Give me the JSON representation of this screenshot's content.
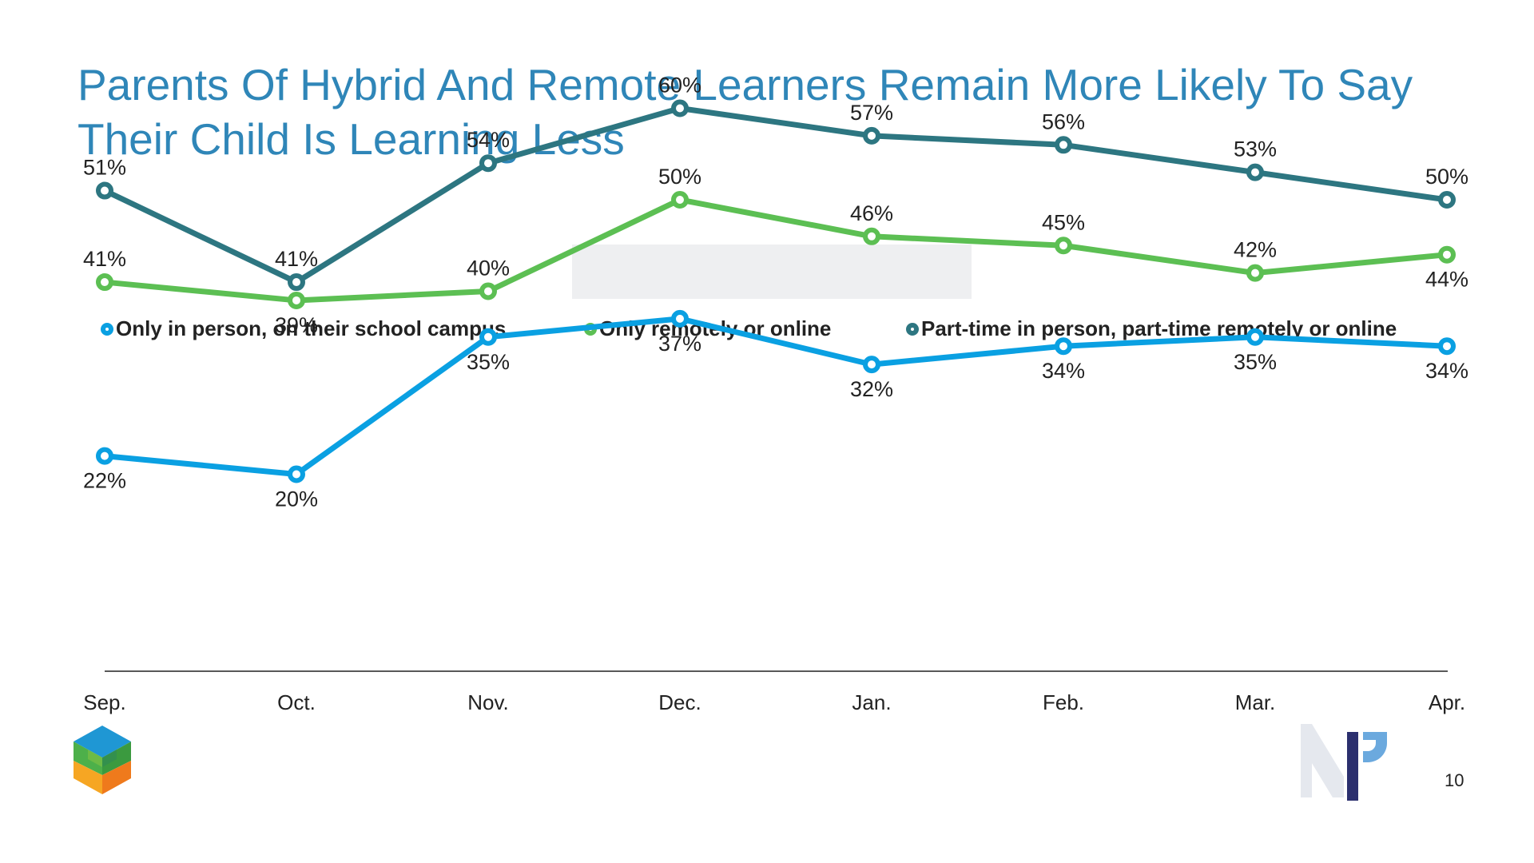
{
  "title": "Parents Of Hybrid And Remote Learners Remain More Likely To Say Their Child Is Learning Less",
  "page_number": "10",
  "legend": [
    {
      "label": "Only in person, on their school campus",
      "color": "#0aa0e2"
    },
    {
      "label": "Only remotely or online",
      "color": "#5cbf53"
    },
    {
      "label": "Part-time in person, part-time remotely or online",
      "color": "#2d7681"
    }
  ],
  "chart_data": {
    "type": "line",
    "title": "",
    "xlabel": "",
    "ylabel": "",
    "categories": [
      "Sep.",
      "Oct.",
      "Nov.",
      "Dec.",
      "Jan.",
      "Feb.",
      "Mar.",
      "Apr."
    ],
    "ylim": [
      0,
      70
    ],
    "grid": false,
    "legend_position": "top",
    "value_format": "percent",
    "series": [
      {
        "name": "Only in person, on their school campus",
        "color": "#0aa0e2",
        "values": [
          22,
          20,
          35,
          37,
          32,
          34,
          35,
          34
        ]
      },
      {
        "name": "Only remotely or online",
        "color": "#5cbf53",
        "values": [
          41,
          39,
          40,
          50,
          46,
          45,
          42,
          44
        ]
      },
      {
        "name": "Part-time in person, part-time remotely or online",
        "color": "#2d7681",
        "values": [
          51,
          41,
          54,
          60,
          57,
          56,
          53,
          50
        ]
      }
    ]
  }
}
